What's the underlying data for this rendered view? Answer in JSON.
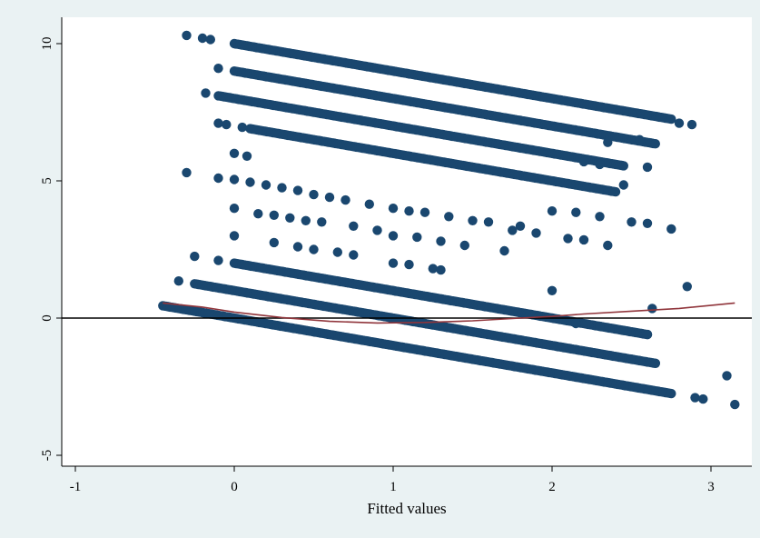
{
  "chart_data": {
    "type": "scatter",
    "title": "",
    "xlabel": "Fitted values",
    "ylabel": "",
    "xlim": [
      -1.1,
      3.2
    ],
    "ylim": [
      -5.5,
      10.9
    ],
    "xticks": [
      -1,
      0,
      1,
      2,
      3
    ],
    "yticks": [
      -5,
      0,
      5,
      10
    ],
    "xtick_labels": [
      "-1",
      "0",
      "1",
      "2",
      "3"
    ],
    "ytick_labels": [
      "-5",
      "0",
      "5",
      "10"
    ],
    "grid": false,
    "legend": "none",
    "reference_line": {
      "y": 0,
      "color": "#000000"
    },
    "colors": {
      "points": "#1a476f",
      "smoother": "#90353b",
      "background": "#eaf2f3",
      "plot_area": "#ffffff"
    },
    "series": [
      {
        "kind": "bands",
        "description_note": "",
        "bands": [
          {
            "x_start": -0.45,
            "x_end": 2.75,
            "y_start": 0.45,
            "y_end": -2.75
          },
          {
            "x_start": -0.25,
            "x_end": 2.65,
            "y_start": 1.25,
            "y_end": -1.65
          },
          {
            "x_start": 0.0,
            "x_end": 2.6,
            "y_start": 2.0,
            "y_end": -0.6
          },
          {
            "x_start": 0.0,
            "x_end": 2.75,
            "y_start": 10.0,
            "y_end": 7.25
          },
          {
            "x_start": 0.0,
            "x_end": 2.65,
            "y_start": 9.0,
            "y_end": 6.35
          },
          {
            "x_start": -0.1,
            "x_end": 2.45,
            "y_start": 8.1,
            "y_end": 5.55
          },
          {
            "x_start": 0.1,
            "x_end": 2.4,
            "y_start": 6.9,
            "y_end": 4.6
          }
        ],
        "scattered_points": [
          [
            -0.3,
            10.3
          ],
          [
            -0.2,
            10.2
          ],
          [
            -0.15,
            10.15
          ],
          [
            -0.1,
            9.1
          ],
          [
            -0.18,
            8.2
          ],
          [
            -0.1,
            7.1
          ],
          [
            -0.05,
            7.05
          ],
          [
            0.05,
            6.95
          ],
          [
            0.0,
            6.0
          ],
          [
            0.08,
            5.9
          ],
          [
            -0.3,
            5.3
          ],
          [
            -0.1,
            5.1
          ],
          [
            0.0,
            5.05
          ],
          [
            0.1,
            4.95
          ],
          [
            0.2,
            4.85
          ],
          [
            0.3,
            4.75
          ],
          [
            0.4,
            4.65
          ],
          [
            0.5,
            4.5
          ],
          [
            0.6,
            4.4
          ],
          [
            0.7,
            4.3
          ],
          [
            0.85,
            4.15
          ],
          [
            1.0,
            4.0
          ],
          [
            1.1,
            3.9
          ],
          [
            1.2,
            3.85
          ],
          [
            1.35,
            3.7
          ],
          [
            1.5,
            3.55
          ],
          [
            1.6,
            3.5
          ],
          [
            1.8,
            3.35
          ],
          [
            2.0,
            3.9
          ],
          [
            2.15,
            3.85
          ],
          [
            2.3,
            3.7
          ],
          [
            0.15,
            3.8
          ],
          [
            0.25,
            3.75
          ],
          [
            0.35,
            3.65
          ],
          [
            0.45,
            3.55
          ],
          [
            0.55,
            3.5
          ],
          [
            0.75,
            3.35
          ],
          [
            0.9,
            3.2
          ],
          [
            1.0,
            3.0
          ],
          [
            1.15,
            2.95
          ],
          [
            1.3,
            2.8
          ],
          [
            1.45,
            2.65
          ],
          [
            1.7,
            2.45
          ],
          [
            0.0,
            4.0
          ],
          [
            0.0,
            3.0
          ],
          [
            0.25,
            2.75
          ],
          [
            0.4,
            2.6
          ],
          [
            0.5,
            2.5
          ],
          [
            0.65,
            2.4
          ],
          [
            0.75,
            2.3
          ],
          [
            1.0,
            2.0
          ],
          [
            1.1,
            1.95
          ],
          [
            1.25,
            1.8
          ],
          [
            1.3,
            1.75
          ],
          [
            1.75,
            3.2
          ],
          [
            1.9,
            3.1
          ],
          [
            2.1,
            2.9
          ],
          [
            2.2,
            2.85
          ],
          [
            2.5,
            3.5
          ],
          [
            2.6,
            3.45
          ],
          [
            2.75,
            3.25
          ],
          [
            2.35,
            2.65
          ],
          [
            -0.25,
            2.25
          ],
          [
            -0.1,
            2.1
          ],
          [
            -0.35,
            1.35
          ],
          [
            2.0,
            1.0
          ],
          [
            2.85,
            1.15
          ],
          [
            2.63,
            0.35
          ],
          [
            2.6,
            5.5
          ],
          [
            2.55,
            6.5
          ],
          [
            2.3,
            5.6
          ],
          [
            2.45,
            4.85
          ],
          [
            2.2,
            5.7
          ],
          [
            2.35,
            6.4
          ],
          [
            2.8,
            7.1
          ],
          [
            2.88,
            7.05
          ],
          [
            2.9,
            -2.9
          ],
          [
            2.95,
            -2.95
          ],
          [
            3.1,
            -2.1
          ],
          [
            3.15,
            -3.15
          ],
          [
            2.15,
            -0.2
          ],
          [
            2.3,
            -0.3
          ],
          [
            2.45,
            -0.45
          ],
          [
            2.6,
            -0.6
          ],
          [
            2.5,
            -1.5
          ],
          [
            2.55,
            -1.55
          ],
          [
            2.65,
            -1.65
          ]
        ]
      }
    ],
    "smoother": {
      "x": [
        -0.45,
        -0.2,
        0.0,
        0.3,
        0.6,
        0.9,
        1.2,
        1.5,
        1.8,
        2.0,
        2.2,
        2.5,
        2.8,
        3.15
      ],
      "y": [
        0.55,
        0.4,
        0.22,
        0.02,
        -0.12,
        -0.18,
        -0.16,
        -0.1,
        0.0,
        0.06,
        0.15,
        0.25,
        0.35,
        0.55
      ]
    }
  }
}
